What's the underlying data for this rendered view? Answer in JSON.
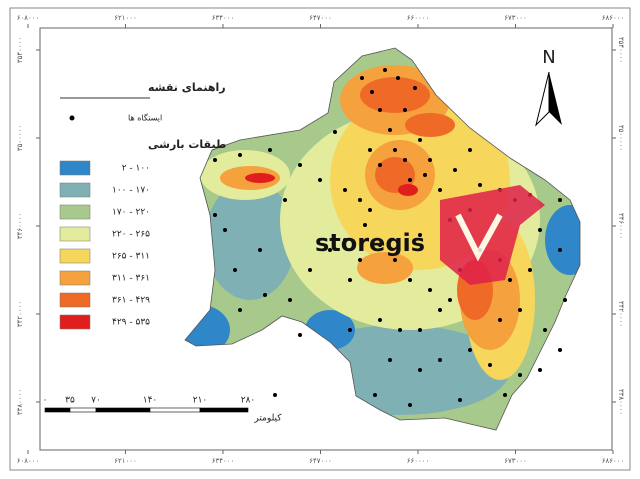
{
  "map": {
    "top_coords": [
      "۶۰۸۰۰۰",
      "۶۲۱۰۰۰",
      "۶۳۴۰۰۰",
      "۶۴۷۰۰۰",
      "۶۶۰۰۰۰",
      "۶۷۳۰۰۰",
      "۶۸۶۰۰۰"
    ],
    "side_coords": [
      "۳۵۴۰۰۰۰",
      "۳۵۰۰۰۰۰",
      "۳۴۶۰۰۰۰",
      "۳۴۲۰۰۰۰",
      "۳۳۸۰۰۰۰"
    ],
    "legend": {
      "title": "راهنمای نقشه",
      "stations": "ایستگاه ها",
      "classes_title": "طبقات بارشی",
      "classes": [
        {
          "label": "۲ - ۱۰۰",
          "color": "#2f86c9"
        },
        {
          "label": "۱۰۰ - ۱۷۰",
          "color": "#7fb0b4"
        },
        {
          "label": "۱۷۰ - ۲۲۰",
          "color": "#a8c98c"
        },
        {
          "label": "۲۲۰ - ۲۶۵",
          "color": "#e3ec9c"
        },
        {
          "label": "۲۶۵ - ۳۱۱",
          "color": "#f7d65c"
        },
        {
          "label": "۳۱۱ - ۳۶۱",
          "color": "#f5a23e"
        },
        {
          "label": "۳۶۱ - ۴۲۹",
          "color": "#ee6a26"
        },
        {
          "label": "۴۲۹ - ۵۳۵",
          "color": "#e01e1e"
        }
      ]
    },
    "scale": {
      "ticks": [
        "۰",
        "۳۵",
        "۷۰",
        "۱۴۰",
        "۲۱۰",
        "۲۸۰"
      ],
      "unit": "کیلومتر"
    },
    "north": "N",
    "watermark": "storegis"
  }
}
